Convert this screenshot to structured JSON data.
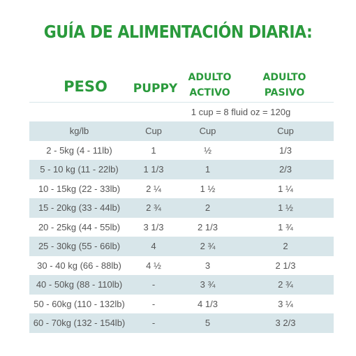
{
  "header": {
    "title": "GUÍA DE ALIMENTACIÓN DIARIA:"
  },
  "columns": [
    "PESO",
    "PUPPY",
    "ADULTO ACTIVO",
    "ADULTO PASIVO"
  ],
  "note": "1 cup = 8 fluid oz = 120g",
  "table": {
    "rows": [
      [
        "kg/lb",
        "Cup",
        "Cup",
        "Cup"
      ],
      [
        "2 - 5kg (4 - 11lb)",
        "1",
        "½",
        "1/3"
      ],
      [
        "5 - 10 kg (11 - 22lb)",
        "1 1/3",
        "1",
        "2/3"
      ],
      [
        "10 - 15kg (22 - 33lb)",
        "2 ¼",
        "1 ½",
        "1 ¼"
      ],
      [
        "15 - 20kg (33 - 44lb)",
        "2 ¾",
        "2",
        "1 ½"
      ],
      [
        "20 - 25kg (44 - 55lb)",
        "3 1/3",
        "2 1/3",
        "1 ¾"
      ],
      [
        "25 - 30kg (55 - 66lb)",
        "4",
        "2 ¾",
        "2"
      ],
      [
        "30 - 40 kg (66 - 88lb)",
        "4 ½",
        "3",
        "2 1/3"
      ],
      [
        "40 - 50kg (88 - 110lb)",
        "-",
        "3 ¾",
        "2 ¾"
      ],
      [
        "50 - 60kg (110 - 132lb)",
        "-",
        "4 1/3",
        "3 ¼"
      ],
      [
        "60 - 70kg (132 - 154lb)",
        "-",
        "5",
        "3 2/3"
      ]
    ]
  }
}
